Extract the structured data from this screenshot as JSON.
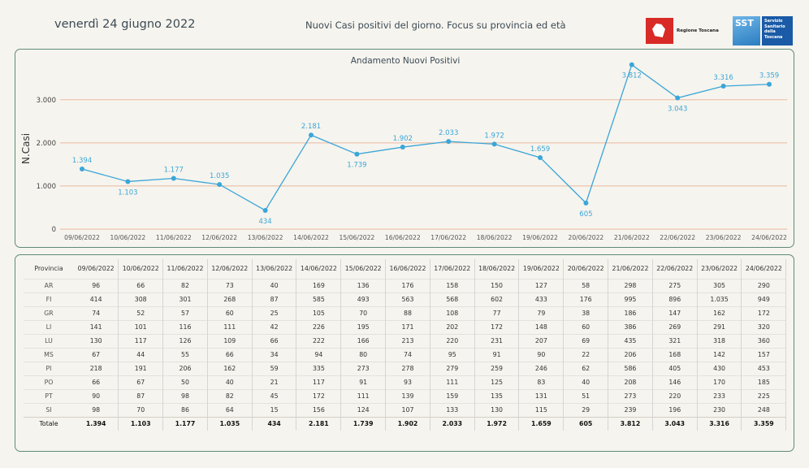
{
  "header": {
    "date": "venerdì 24 giugno 2022",
    "title": "Nuovi Casi positivi del giorno. Focus su provincia ed età",
    "logo_rt_text": "Regione Toscana",
    "logo_sst_short": "SST",
    "logo_sst_text": [
      "Servizio",
      "Sanitario",
      "della",
      "Toscana"
    ]
  },
  "colors": {
    "line": "#3aa6d8",
    "grid": "#e8b9a0",
    "border": "#5e8a7a",
    "label": "#3aa6d8"
  },
  "chart_data": {
    "type": "line",
    "title": "Andamento Nuovi Positivi",
    "xlabel": "",
    "ylabel": "N.Casi",
    "ylim": [
      0,
      3900
    ],
    "yticks": [
      0,
      1000,
      2000,
      3000
    ],
    "ytick_labels": [
      "0",
      "1.000",
      "2.000",
      "3.000"
    ],
    "grid": true,
    "categories": [
      "09/06/2022",
      "10/06/2022",
      "11/06/2022",
      "12/06/2022",
      "13/06/2022",
      "14/06/2022",
      "15/06/2022",
      "16/06/2022",
      "17/06/2022",
      "18/06/2022",
      "19/06/2022",
      "20/06/2022",
      "21/06/2022",
      "22/06/2022",
      "23/06/2022",
      "24/06/2022"
    ],
    "values": [
      1394,
      1103,
      1177,
      1035,
      434,
      2181,
      1739,
      1902,
      2033,
      1972,
      1659,
      605,
      3812,
      3043,
      3316,
      3359
    ],
    "value_labels": [
      "1.394",
      "1.103",
      "1.177",
      "1.035",
      "434",
      "2.181",
      "1.739",
      "1.902",
      "2.033",
      "1.972",
      "1.659",
      "605",
      "3.812",
      "3.043",
      "3.316",
      "3.359"
    ],
    "label_positions": [
      "above",
      "below",
      "above",
      "above",
      "below",
      "above",
      "below",
      "above",
      "above",
      "above",
      "above",
      "below",
      "below",
      "below",
      "above",
      "above"
    ]
  },
  "table": {
    "header_label": "Provincia",
    "dates": [
      "09/06/2022",
      "10/06/2022",
      "11/06/2022",
      "12/06/2022",
      "13/06/2022",
      "14/06/2022",
      "15/06/2022",
      "16/06/2022",
      "17/06/2022",
      "18/06/2022",
      "19/06/2022",
      "20/06/2022",
      "21/06/2022",
      "22/06/2022",
      "23/06/2022",
      "24/06/2022"
    ],
    "rows": [
      {
        "prov": "AR",
        "v": [
          "96",
          "66",
          "82",
          "73",
          "40",
          "169",
          "136",
          "176",
          "158",
          "150",
          "127",
          "58",
          "298",
          "275",
          "305",
          "290"
        ]
      },
      {
        "prov": "FI",
        "v": [
          "414",
          "308",
          "301",
          "268",
          "87",
          "585",
          "493",
          "563",
          "568",
          "602",
          "433",
          "176",
          "995",
          "896",
          "1.035",
          "949"
        ]
      },
      {
        "prov": "GR",
        "v": [
          "74",
          "52",
          "57",
          "60",
          "25",
          "105",
          "70",
          "88",
          "108",
          "77",
          "79",
          "38",
          "186",
          "147",
          "162",
          "172"
        ]
      },
      {
        "prov": "LI",
        "v": [
          "141",
          "101",
          "116",
          "111",
          "42",
          "226",
          "195",
          "171",
          "202",
          "172",
          "148",
          "60",
          "386",
          "269",
          "291",
          "320"
        ]
      },
      {
        "prov": "LU",
        "v": [
          "130",
          "117",
          "126",
          "109",
          "66",
          "222",
          "166",
          "213",
          "220",
          "231",
          "207",
          "69",
          "435",
          "321",
          "318",
          "360"
        ]
      },
      {
        "prov": "MS",
        "v": [
          "67",
          "44",
          "55",
          "66",
          "34",
          "94",
          "80",
          "74",
          "95",
          "91",
          "90",
          "22",
          "206",
          "168",
          "142",
          "157"
        ]
      },
      {
        "prov": "PI",
        "v": [
          "218",
          "191",
          "206",
          "162",
          "59",
          "335",
          "273",
          "278",
          "279",
          "259",
          "246",
          "62",
          "586",
          "405",
          "430",
          "453"
        ]
      },
      {
        "prov": "PO",
        "v": [
          "66",
          "67",
          "50",
          "40",
          "21",
          "117",
          "91",
          "93",
          "111",
          "125",
          "83",
          "40",
          "208",
          "146",
          "170",
          "185"
        ]
      },
      {
        "prov": "PT",
        "v": [
          "90",
          "87",
          "98",
          "82",
          "45",
          "172",
          "111",
          "139",
          "159",
          "135",
          "131",
          "51",
          "273",
          "220",
          "233",
          "225"
        ]
      },
      {
        "prov": "SI",
        "v": [
          "98",
          "70",
          "86",
          "64",
          "15",
          "156",
          "124",
          "107",
          "133",
          "130",
          "115",
          "29",
          "239",
          "196",
          "230",
          "248"
        ]
      }
    ],
    "total": {
      "prov": "Totale",
      "v": [
        "1.394",
        "1.103",
        "1.177",
        "1.035",
        "434",
        "2.181",
        "1.739",
        "1.902",
        "2.033",
        "1.972",
        "1.659",
        "605",
        "3.812",
        "3.043",
        "3.316",
        "3.359"
      ]
    }
  }
}
